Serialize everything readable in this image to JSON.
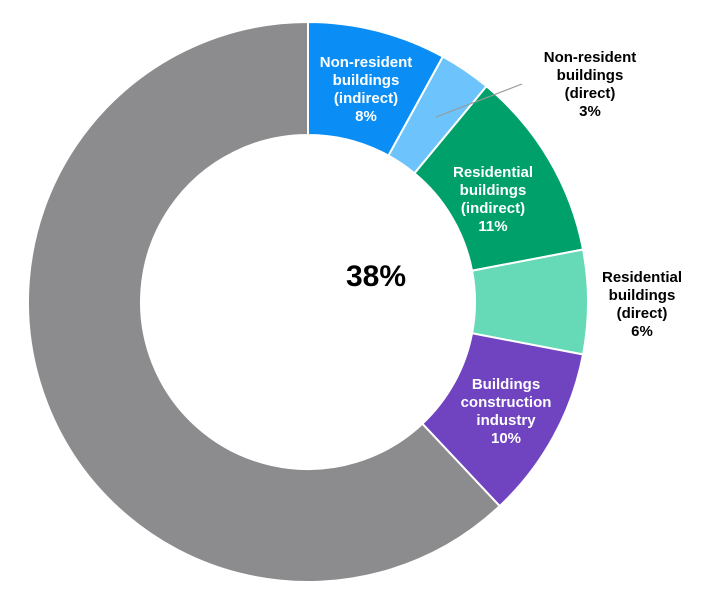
{
  "chart_data": {
    "type": "donut",
    "center_label": "38%",
    "categories": [
      "Non-resident buildings (indirect)",
      "Non-resident buildings (direct)",
      "Residential buildings (indirect)",
      "Residential buildings (direct)",
      "Buildings construction industry",
      null
    ],
    "values": [
      8,
      3,
      11,
      6,
      10,
      62
    ],
    "value_labels": [
      "8%",
      "3%",
      "11%",
      "6%",
      "10%",
      null
    ],
    "colors": [
      "#0a8ef5",
      "#6dc3fc",
      "#00a06b",
      "#66d9b6",
      "#7043c0",
      "#8c8c8e"
    ]
  }
}
